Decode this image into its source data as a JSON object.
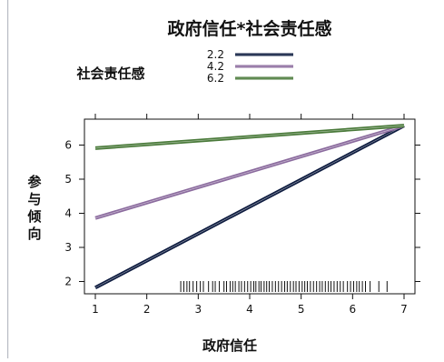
{
  "chart_data": {
    "type": "line",
    "title": "政府信任*社会责任感",
    "xlabel": "政府信任",
    "ylabel": "参与倾向",
    "legend_title": "社会责任感",
    "legend_position": "top",
    "xlim": [
      1,
      7
    ],
    "ylim": [
      1.8,
      6.6
    ],
    "x_ticks": [
      1,
      2,
      3,
      4,
      5,
      6,
      7
    ],
    "y_ticks": [
      2,
      3,
      4,
      5,
      6
    ],
    "grid": false,
    "series": [
      {
        "name": "2.2",
        "color": "#0d1b3f",
        "x": [
          1,
          7
        ],
        "y": [
          1.82,
          6.57
        ]
      },
      {
        "name": "4.2",
        "color": "#8b6b9e",
        "x": [
          1,
          7
        ],
        "y": [
          3.86,
          6.57
        ]
      },
      {
        "name": "6.2",
        "color": "#4a7a3a",
        "x": [
          1,
          7
        ],
        "y": [
          5.91,
          6.57
        ]
      }
    ],
    "rug_x": [
      2.66,
      2.72,
      2.78,
      2.83,
      2.9,
      2.97,
      3.04,
      3.1,
      3.2,
      3.28,
      3.33,
      3.41,
      3.5,
      3.55,
      3.62,
      3.67,
      3.72,
      3.79,
      3.84,
      3.9,
      3.96,
      4.02,
      4.08,
      4.12,
      4.18,
      4.22,
      4.28,
      4.33,
      4.38,
      4.44,
      4.5,
      4.56,
      4.62,
      4.68,
      4.73,
      4.79,
      4.85,
      4.9,
      4.96,
      5.02,
      5.07,
      5.12,
      5.18,
      5.24,
      5.3,
      5.36,
      5.41,
      5.47,
      5.53,
      5.58,
      5.64,
      5.7,
      5.76,
      5.82,
      5.9,
      5.96,
      6.02,
      6.08,
      6.13,
      6.19,
      6.25,
      6.34,
      6.51,
      6.67
    ]
  }
}
